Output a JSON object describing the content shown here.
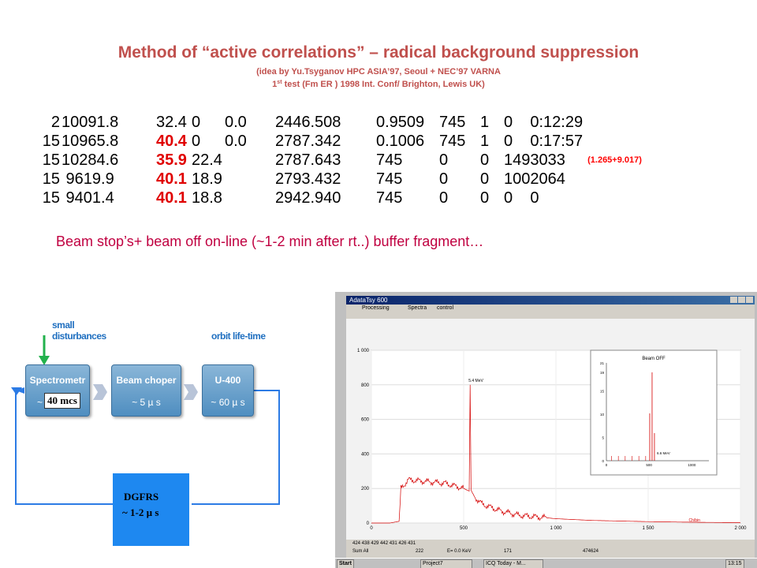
{
  "title": "Method of “active correlations” – radical background suppression",
  "subtitle1": "(idea by Yu.Tsyganov  HPC ASIA’97, Seoul + NEC’97 VARNA",
  "subtitle2_pre": "1",
  "subtitle2_sup": "st",
  "subtitle2_post": " test (Fm ER )  1998  Int.  Conf/ Brighton, Lewis UK)",
  "rows": [
    {
      "c1": "  2",
      "c2": "10091.8",
      "c3": "32.4",
      "c3red": false,
      "c4": "0",
      "c5": "0.0",
      "c6": "2446.508",
      "c7": "0.9509",
      "c8": "745",
      "c9": "1",
      "c10": "0",
      "c11": "0:12:29",
      "note": ""
    },
    {
      "c1": "15",
      "c2": "10965.8",
      "c3": "40.4",
      "c3red": true,
      "c4": "0",
      "c5": "0.0",
      "c6": "2787.342",
      "c7": "0.1006",
      "c8": "745",
      "c9": "1",
      "c10": "0",
      "c11": "0:17:57",
      "note": ""
    },
    {
      "c1": "15",
      "c2": "10284.6",
      "c3": "35.9",
      "c3red": true,
      "c4": "22.4",
      "c5": "",
      "c6": "2787.643",
      "c7": "745",
      "c8": "0",
      "c9": "0",
      "c10": "149",
      "c11": "3033",
      "note": "(1.265+9.017)"
    },
    {
      "c1": "15",
      "c2": " 9619.9",
      "c3": "40.1",
      "c3red": true,
      "c4": "18.9",
      "c5": "",
      "c6": "2793.432",
      "c7": "745",
      "c8": "0",
      "c9": "0",
      "c10": "100",
      "c11": "2064",
      "note": ""
    },
    {
      "c1": "15",
      "c2": " 9401.4",
      "c3": "40.1",
      "c3red": true,
      "c4": "18.8",
      "c5": "",
      "c6": "2942.940",
      "c7": "745",
      "c8": "0",
      "c9": "0",
      "c10": "0",
      "c11": "0",
      "note": ""
    }
  ],
  "beam_text": "Beam stop’s+ beam off on-line (~1-2 min after rt..) buffer fragment…",
  "diagram": {
    "small_disturbances": [
      "small",
      "disturbances"
    ],
    "orbit_life_time": "orbit life-time",
    "box1_title": "Spectrometr",
    "box1_tilde": "~",
    "box1_value": "40 mcs",
    "box2_title": "Beam choper",
    "box2_value": "~ 5  µ s",
    "box3_title": "U-400",
    "box3_value": "~ 60  µ s",
    "dgfrs_title": "DGFRS",
    "dgfrs_value": "~ 1-2  µ s"
  },
  "screenshot": {
    "window_title": "AdataTsy 600",
    "menu": [
      "Processing",
      "Spectra",
      "control"
    ],
    "y_ticks": [
      "1 000",
      "800",
      "600",
      "400",
      "200",
      "0"
    ],
    "x_ticks": [
      "0",
      "500",
      "1 000",
      "1 500",
      "2 000"
    ],
    "peak_label": "5.4 MeV",
    "x_axis_note": "Ch/bin",
    "inset_title": "Beam OFF",
    "inset_y_ticks": [
      "21",
      "19",
      "15",
      "10",
      "5",
      "0"
    ],
    "inset_x_ticks": [
      "0",
      "500",
      "1000"
    ],
    "inset_peak_label": "6.6 MeV",
    "status_values": [
      "424 438 429 442 431 426 431"
    ],
    "status_fields": [
      "Sum All",
      "222",
      "E= 0.0 KeV",
      "171",
      "474624"
    ],
    "taskbar": [
      "Start",
      "Project7",
      "ICQ Today - M...",
      "13:15"
    ]
  },
  "chart_data": {
    "type": "line",
    "title": "",
    "xlabel": "",
    "ylabel": "",
    "xlim": [
      0,
      2000
    ],
    "ylim": [
      0,
      1000
    ],
    "series": [
      {
        "x": [
          0,
          100,
          150,
          160,
          200,
          300,
          400,
          500,
          520,
          530,
          535,
          540,
          560,
          600,
          700,
          800,
          1000,
          1200,
          1500,
          1700,
          1800,
          2000
        ],
        "values": [
          0,
          0,
          10,
          200,
          250,
          240,
          230,
          200,
          190,
          185,
          800,
          190,
          150,
          110,
          70,
          45,
          25,
          15,
          8,
          5,
          4,
          2
        ]
      }
    ]
  }
}
